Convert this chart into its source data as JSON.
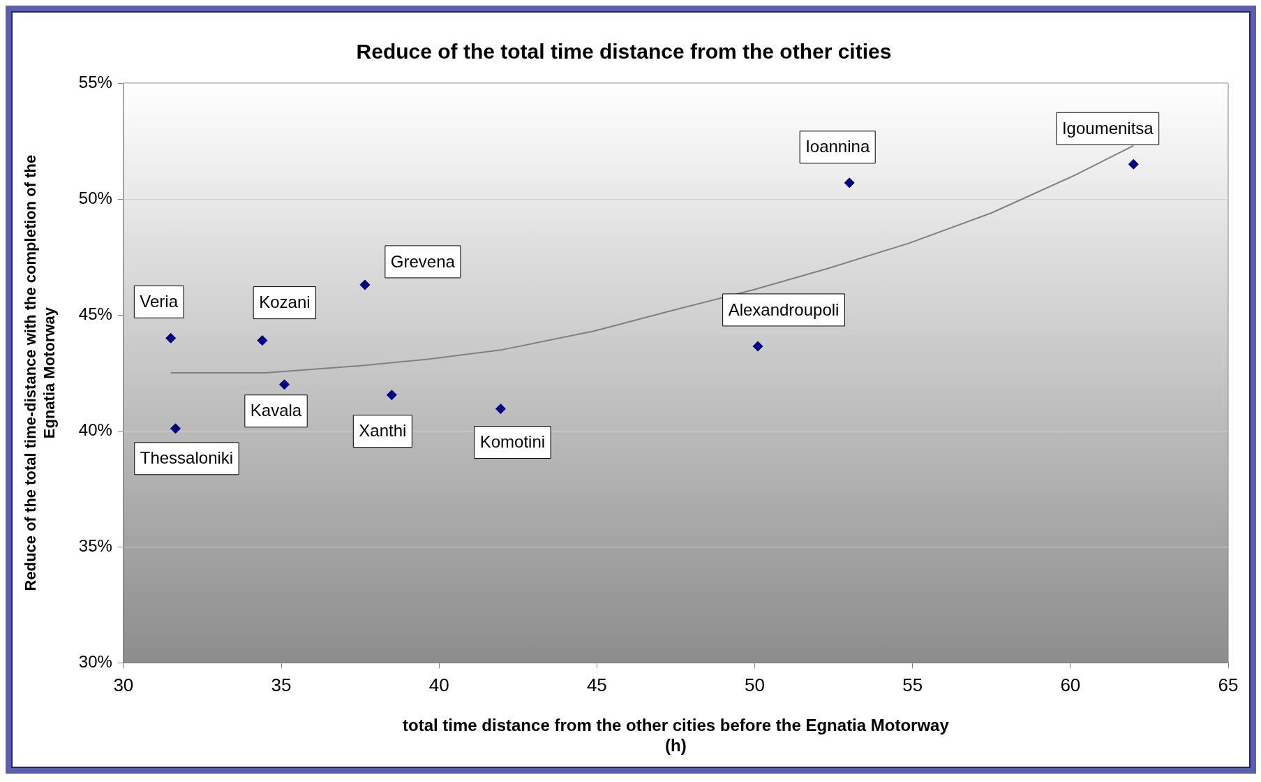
{
  "chart_data": {
    "type": "scatter",
    "title": "Reduce of the total time distance from the other cities",
    "xlabel": "total time distance from the other cities before the Egnatia Motorway\n(h)",
    "ylabel": "Reduce of the total time-distance with the completion of the\nEgnatia Motorway",
    "xlim": [
      30,
      65
    ],
    "xticks": [
      30,
      35,
      40,
      45,
      50,
      55,
      60,
      65
    ],
    "ylim": [
      30,
      55
    ],
    "yticks": [
      {
        "value": 30,
        "label": "30%"
      },
      {
        "value": 35,
        "label": "35%"
      },
      {
        "value": 40,
        "label": "40%"
      },
      {
        "value": 45,
        "label": "45%"
      },
      {
        "value": 50,
        "label": "50%"
      },
      {
        "value": 55,
        "label": "55%"
      }
    ],
    "grid": "y",
    "legend": false,
    "marker": "diamond",
    "series": [
      {
        "type": "scatter",
        "color": "#000080",
        "x": [
          31.5,
          31.65,
          34.4,
          35.1,
          37.65,
          38.5,
          41.95,
          50.1,
          53.0,
          62.0
        ],
        "values": [
          44.0,
          40.1,
          43.9,
          42.0,
          46.3,
          41.55,
          40.95,
          43.65,
          50.7,
          51.5
        ]
      },
      {
        "type": "line",
        "color": "#808080",
        "marker": "none",
        "x": [
          31.5,
          34.5,
          37.4,
          39.7,
          42.0,
          44.9,
          47.4,
          50.0,
          52.3,
          54.9,
          57.5,
          60.1,
          62.0
        ],
        "values": [
          42.5,
          42.5,
          42.8,
          43.1,
          43.5,
          44.3,
          45.2,
          46.1,
          47.0,
          48.1,
          49.4,
          51.0,
          52.3
        ]
      }
    ],
    "annotations": [
      {
        "text": "Veria",
        "x": 31.5,
        "y": 44.0
      },
      {
        "text": "Thessaloniki",
        "x": 31.65,
        "y": 40.1
      },
      {
        "text": "Kozani",
        "x": 34.4,
        "y": 43.9
      },
      {
        "text": "Kavala",
        "x": 35.1,
        "y": 42.0
      },
      {
        "text": "Grevena",
        "x": 37.65,
        "y": 46.3
      },
      {
        "text": "Xanthi",
        "x": 38.5,
        "y": 41.55
      },
      {
        "text": "Komotini",
        "x": 41.95,
        "y": 40.95
      },
      {
        "text": "Alexandroupoli",
        "x": 50.1,
        "y": 43.65
      },
      {
        "text": "Ioannina",
        "x": 53.0,
        "y": 50.7
      },
      {
        "text": "Igoumenitsa",
        "x": 62.0,
        "y": 51.5
      }
    ]
  }
}
